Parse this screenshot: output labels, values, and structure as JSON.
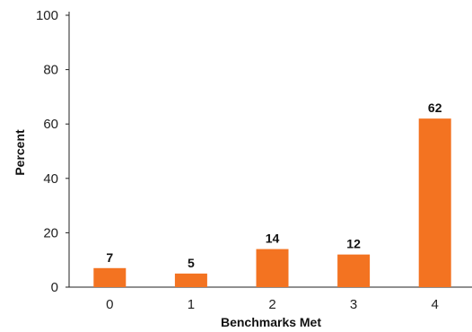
{
  "chart_data": {
    "type": "bar",
    "title": "",
    "xlabel": "Benchmarks Met",
    "ylabel": "Percent",
    "categories": [
      "0",
      "1",
      "2",
      "3",
      "4"
    ],
    "values": [
      7,
      5,
      14,
      12,
      62
    ],
    "data_labels": [
      "7",
      "5",
      "14",
      "12",
      "62"
    ],
    "ylim": [
      0,
      100
    ],
    "yticks": [
      0,
      20,
      40,
      60,
      80,
      100
    ],
    "grid": false,
    "legend": "none",
    "bar_color": "#F37321",
    "axis_color": "#222222"
  }
}
